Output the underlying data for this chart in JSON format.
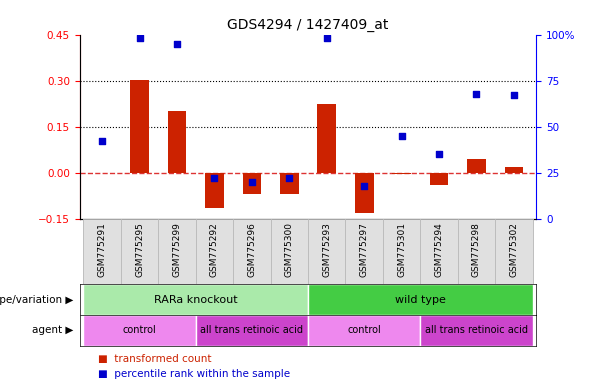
{
  "title": "GDS4294 / 1427409_at",
  "samples": [
    "GSM775291",
    "GSM775295",
    "GSM775299",
    "GSM775292",
    "GSM775296",
    "GSM775300",
    "GSM775293",
    "GSM775297",
    "GSM775301",
    "GSM775294",
    "GSM775298",
    "GSM775302"
  ],
  "transformed_count": [
    0.0,
    0.302,
    0.2,
    -0.115,
    -0.07,
    -0.07,
    0.225,
    -0.13,
    -0.005,
    -0.04,
    0.045,
    0.02
  ],
  "percentile_rank": [
    42,
    98,
    95,
    22,
    20,
    22,
    98,
    18,
    45,
    35,
    68,
    67
  ],
  "bar_color": "#cc2200",
  "dot_color": "#0000cc",
  "ylim_left": [
    -0.15,
    0.45
  ],
  "ylim_right": [
    0,
    100
  ],
  "yticks_left": [
    -0.15,
    0,
    0.15,
    0.3,
    0.45
  ],
  "yticks_right": [
    0,
    25,
    50,
    75,
    100
  ],
  "hlines": [
    0.15,
    0.3
  ],
  "zero_line_color": "#dd3333",
  "genotype_groups": [
    {
      "label": "RARa knockout",
      "span": [
        0,
        6
      ],
      "color": "#aaeaaa"
    },
    {
      "label": "wild type",
      "span": [
        6,
        12
      ],
      "color": "#44cc44"
    }
  ],
  "agent_groups": [
    {
      "label": "control",
      "span": [
        0,
        3
      ],
      "color": "#ee88ee"
    },
    {
      "label": "all trans retinoic acid",
      "span": [
        3,
        6
      ],
      "color": "#cc44cc"
    },
    {
      "label": "control",
      "span": [
        6,
        9
      ],
      "color": "#ee88ee"
    },
    {
      "label": "all trans retinoic acid",
      "span": [
        9,
        12
      ],
      "color": "#cc44cc"
    }
  ],
  "legend_items": [
    {
      "label": "transformed count",
      "color": "#cc2200"
    },
    {
      "label": "percentile rank within the sample",
      "color": "#0000cc"
    }
  ],
  "genotype_label": "genotype/variation",
  "agent_label": "agent",
  "bar_width": 0.5,
  "dot_size": 18,
  "facecolor": "#f0f0f0",
  "plot_bg": "#ffffff"
}
